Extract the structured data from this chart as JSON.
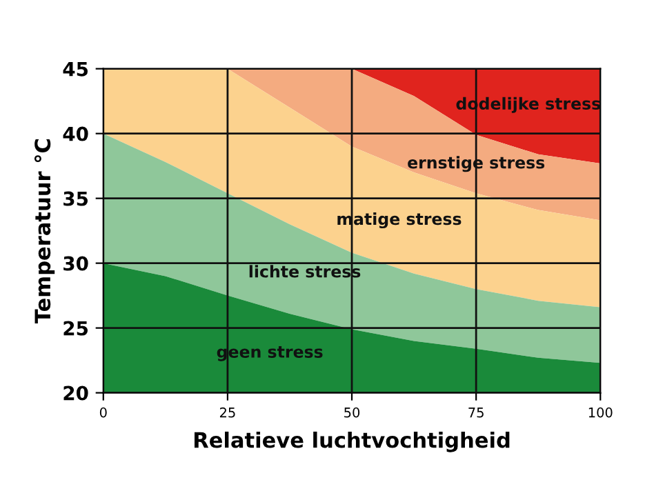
{
  "chart_data": {
    "type": "area",
    "xlabel": "Relatieve luchtvochtigheid",
    "ylabel": "Temperatuur °C",
    "x": [
      0,
      12.5,
      25,
      37.5,
      50,
      62.5,
      75,
      87.5,
      100
    ],
    "series": [
      {
        "name": "geen stress",
        "color": "#1a8a3a",
        "values": [
          30,
          29.0,
          27.5,
          26.1,
          24.9,
          24.0,
          23.4,
          22.7,
          22.3
        ]
      },
      {
        "name": "lichte stress",
        "color": "#8fc79a",
        "values": [
          40,
          37.8,
          35.4,
          33.0,
          30.8,
          29.2,
          28.0,
          27.1,
          26.6
        ]
      },
      {
        "name": "matige stress",
        "color": "#fcd28e",
        "values": [
          45,
          45,
          45,
          42.0,
          39.0,
          37.0,
          35.4,
          34.1,
          33.3
        ]
      },
      {
        "name": "ernstige stress",
        "color": "#f4ab80",
        "values": [
          45,
          45,
          45,
          45,
          45,
          42.9,
          39.9,
          38.4,
          37.7
        ]
      },
      {
        "name": "dodelijke stress",
        "color": "#e0241e",
        "values": [
          45,
          45,
          45,
          45,
          45,
          45,
          45,
          45,
          45
        ]
      }
    ],
    "xlim": [
      0,
      100
    ],
    "ylim": [
      20,
      45
    ],
    "xticks": [
      0,
      25,
      50,
      75,
      100
    ],
    "yticks": [
      20,
      25,
      30,
      35,
      40,
      45
    ],
    "grid": true,
    "legend": false
  }
}
